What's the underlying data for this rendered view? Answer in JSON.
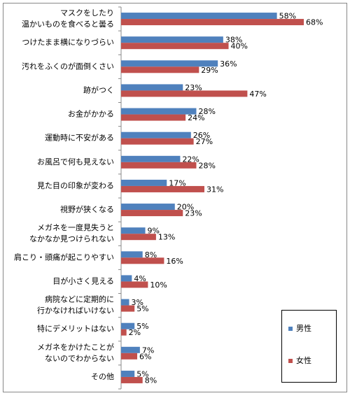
{
  "chart_data": {
    "type": "bar",
    "orientation": "horizontal",
    "categories": [
      [
        "マスクをしたり",
        "温かいものを食べると曇る"
      ],
      [
        "つけたまま横になりづらい"
      ],
      [
        "汚れをふくのが面倒くさい"
      ],
      [
        "跡がつく"
      ],
      [
        "お金がかかる"
      ],
      [
        "運動時に不安がある"
      ],
      [
        "お風呂で何も見えない"
      ],
      [
        "見た目の印象が変わる"
      ],
      [
        "視野が狭くなる"
      ],
      [
        "メガネを一度見失うと",
        "なかなか見つけられない"
      ],
      [
        "肩こり・頭痛が起こりやすい"
      ],
      [
        "目が小さく見える"
      ],
      [
        "病院などに定期的に",
        "行かなければいけない"
      ],
      [
        "特にデメリットはない"
      ],
      [
        "メガネをかけたことが",
        "ないのでわからない"
      ],
      [
        "その他"
      ]
    ],
    "series": [
      {
        "name": "男性",
        "color": "#4f81bd",
        "values": [
          58,
          38,
          36,
          23,
          28,
          26,
          22,
          17,
          20,
          9,
          8,
          4,
          3,
          5,
          7,
          5
        ],
        "value_labels": [
          "58%",
          "38%",
          "36%",
          "23%",
          "28%",
          "26%",
          "22%",
          "17%",
          "20%",
          "9%",
          "8%",
          "4%",
          "3%",
          "5%",
          "7%",
          "5%"
        ]
      },
      {
        "name": "女性",
        "color": "#c0504d",
        "values": [
          68,
          40,
          29,
          47,
          24,
          27,
          28,
          31,
          23,
          13,
          16,
          10,
          5,
          2,
          6,
          8
        ],
        "value_labels": [
          "68%",
          "40%",
          "29%",
          "47%",
          "24%",
          "27%",
          "28%",
          "31%",
          "23%",
          "13%",
          "16%",
          "10%",
          "5%",
          "2%",
          "6%",
          "8%"
        ]
      }
    ]
  }
}
